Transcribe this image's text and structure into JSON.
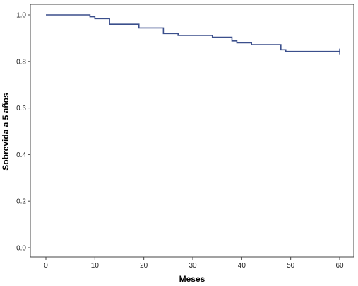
{
  "chart_data": {
    "type": "line",
    "title": "",
    "xlabel": "Meses",
    "ylabel": "Sobrevida a 5 años",
    "xlim": [
      0,
      60
    ],
    "ylim": [
      0,
      1.0
    ],
    "x_ticks": [
      0,
      10,
      20,
      30,
      40,
      50,
      60
    ],
    "x_tick_labels": [
      "0",
      "10",
      "20",
      "30",
      "40",
      "50",
      "60"
    ],
    "y_ticks": [
      0.0,
      0.2,
      0.4,
      0.6,
      0.8,
      1.0
    ],
    "y_tick_labels": [
      "0.0",
      "0.2",
      "0.4",
      "0.6",
      "0.8",
      "1.0"
    ],
    "grid": false,
    "legend": "none",
    "step": true,
    "series": [
      {
        "color": "#3b4f8c",
        "x": [
          0,
          9,
          9.5,
          10,
          13,
          19,
          24,
          27,
          34,
          38,
          39,
          42,
          48,
          49,
          60
        ],
        "y": [
          1.0,
          0.992,
          0.992,
          0.984,
          0.96,
          0.944,
          0.92,
          0.912,
          0.904,
          0.888,
          0.88,
          0.872,
          0.85,
          0.843,
          0.843
        ],
        "censored": [
          {
            "x": 60,
            "y": 0.843
          }
        ]
      }
    ]
  }
}
